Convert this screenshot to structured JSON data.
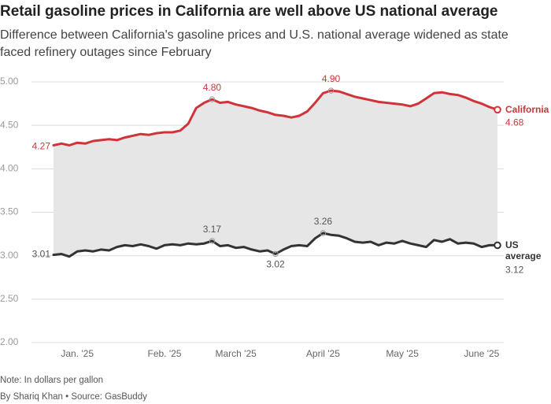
{
  "chart_data": {
    "type": "line",
    "title": "Retail gasoline prices in California are well above US national average",
    "subtitle": "Difference between California's gasoline prices and U.S. national average widened as state faced refinery outages since February",
    "note": "Note: In dollars per gallon",
    "source": "By Shariq Khan • Source: GasBuddy",
    "categories": [
      null,
      null,
      null,
      "Jan. '25",
      null,
      null,
      null,
      null,
      null,
      null,
      null,
      null,
      null,
      null,
      "Feb. '25",
      null,
      null,
      null,
      null,
      null,
      null,
      null,
      null,
      "March '25",
      null,
      null,
      null,
      null,
      null,
      null,
      null,
      null,
      null,
      null,
      "April '25",
      null,
      null,
      null,
      null,
      null,
      null,
      null,
      null,
      null,
      "May '25",
      null,
      null,
      null,
      null,
      null,
      null,
      null,
      null,
      null,
      "June '25",
      null,
      null
    ],
    "ylim": [
      2,
      5
    ],
    "yticks": [
      {
        "value": 2,
        "label": "2.00"
      },
      {
        "value": 2.5,
        "label": "2.50"
      },
      {
        "value": 3,
        "label": "3.00"
      },
      {
        "value": 3.5,
        "label": "3.50"
      },
      {
        "value": 4,
        "label": "4.00"
      },
      {
        "value": 4.5,
        "label": "4.50"
      },
      {
        "value": 5,
        "label": "5.00"
      }
    ],
    "grid": true,
    "band_color": "#e6e6e6",
    "series": [
      {
        "name": "California",
        "color": "#d0343a",
        "values": [
          4.27,
          4.29,
          4.27,
          4.3,
          4.29,
          4.32,
          4.33,
          4.34,
          4.33,
          4.36,
          4.38,
          4.4,
          4.39,
          4.41,
          4.42,
          4.42,
          4.44,
          4.52,
          4.7,
          4.76,
          4.8,
          4.76,
          4.77,
          4.74,
          4.72,
          4.7,
          4.67,
          4.65,
          4.62,
          4.61,
          4.59,
          4.61,
          4.66,
          4.76,
          4.87,
          4.9,
          4.89,
          4.86,
          4.83,
          4.81,
          4.79,
          4.77,
          4.76,
          4.75,
          4.74,
          4.72,
          4.75,
          4.81,
          4.87,
          4.88,
          4.86,
          4.85,
          4.82,
          4.78,
          4.75,
          4.71,
          4.68
        ],
        "value_labels": [
          "4.27",
          null,
          null,
          null,
          null,
          null,
          null,
          null,
          null,
          null,
          null,
          null,
          null,
          null,
          null,
          null,
          null,
          null,
          null,
          null,
          "4.80",
          null,
          null,
          null,
          null,
          null,
          null,
          null,
          null,
          null,
          null,
          null,
          null,
          null,
          null,
          "4.90",
          null,
          null,
          null,
          null,
          null,
          null,
          null,
          null,
          null,
          null,
          null,
          null,
          null,
          null,
          null,
          null,
          null,
          null,
          null,
          null,
          "4.68"
        ]
      },
      {
        "name": "US average",
        "color": "#333333",
        "values": [
          3.01,
          3.02,
          2.99,
          3.05,
          3.06,
          3.05,
          3.07,
          3.06,
          3.1,
          3.12,
          3.11,
          3.13,
          3.11,
          3.08,
          3.12,
          3.13,
          3.12,
          3.14,
          3.13,
          3.14,
          3.17,
          3.11,
          3.12,
          3.09,
          3.1,
          3.07,
          3.05,
          3.06,
          3.02,
          3.07,
          3.11,
          3.12,
          3.11,
          3.2,
          3.26,
          3.24,
          3.23,
          3.2,
          3.16,
          3.15,
          3.16,
          3.12,
          3.15,
          3.14,
          3.17,
          3.14,
          3.12,
          3.1,
          3.18,
          3.16,
          3.19,
          3.14,
          3.15,
          3.14,
          3.1,
          3.12,
          3.12
        ],
        "value_labels": [
          "3.01",
          null,
          null,
          null,
          null,
          null,
          null,
          null,
          null,
          null,
          null,
          null,
          null,
          null,
          null,
          null,
          null,
          null,
          null,
          null,
          "3.17",
          null,
          null,
          null,
          null,
          null,
          null,
          null,
          "3.02",
          null,
          null,
          null,
          null,
          null,
          "3.26",
          null,
          null,
          null,
          null,
          null,
          null,
          null,
          null,
          null,
          null,
          null,
          null,
          null,
          null,
          null,
          null,
          null,
          null,
          null,
          null,
          null,
          "3.12"
        ]
      }
    ]
  }
}
